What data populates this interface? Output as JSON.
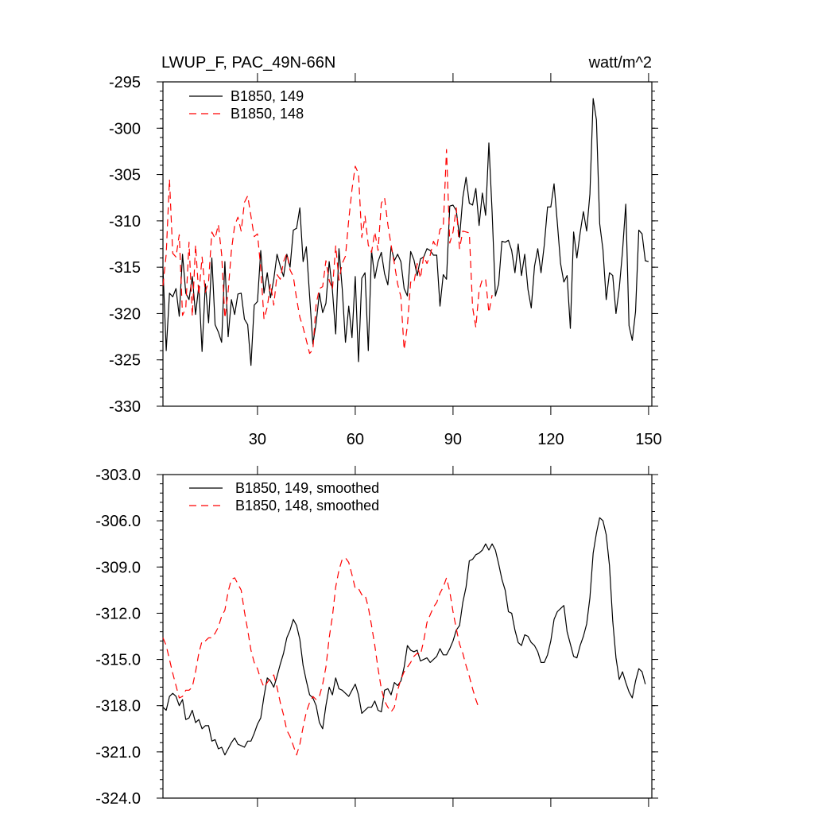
{
  "colors": {
    "series_a": "#000000",
    "series_b": "#ff0000"
  },
  "chart_data": [
    {
      "type": "line",
      "title": "LWUP_F, PAC_49N-66N",
      "units": "watt/m^2",
      "xlim": [
        1,
        151
      ],
      "ylim": [
        -330,
        -295
      ],
      "xticks": [
        30,
        60,
        90,
        120,
        150
      ],
      "yticks": [
        -295,
        -300,
        -305,
        -310,
        -315,
        -320,
        -325,
        -330
      ],
      "ytick_labels": [
        "-295",
        "-300",
        "-305",
        "-310",
        "-315",
        "-320",
        "-325",
        "-330"
      ],
      "legend_position": "top-left",
      "series": [
        {
          "name": "B1850, 149",
          "style": "solid",
          "x_start": 1,
          "values": [
            -315.1,
            -324.0,
            -317.8,
            -318.2,
            -317.3,
            -320.3,
            -313.6,
            -317.8,
            -318.5,
            -316.0,
            -320.1,
            -317.0,
            -324.1,
            -316.8,
            -321.0,
            -314.0,
            -321.2,
            -322.0,
            -323.1,
            -314.4,
            -322.5,
            -318.5,
            -320.1,
            -317.9,
            -317.8,
            -320.6,
            -321.2,
            -325.6,
            -319.1,
            -318.7,
            -313.2,
            -317.8,
            -315.6,
            -318.3,
            -316.3,
            -313.6,
            -314.9,
            -316.0,
            -313.6,
            -315.0,
            -311.0,
            -310.8,
            -308.6,
            -314.4,
            -312.8,
            -318.1,
            -323.3,
            -321.0,
            -317.8,
            -319.9,
            -318.9,
            -314.4,
            -317.5,
            -322.2,
            -313.0,
            -317.3,
            -323.1,
            -319.2,
            -322.6,
            -316.0,
            -325.2,
            -316.2,
            -315.6,
            -324.0,
            -313.2,
            -316.2,
            -314.4,
            -313.4,
            -315.7,
            -316.9,
            -312.8,
            -314.3,
            -313.6,
            -314.4,
            -317.3,
            -318.1,
            -313.3,
            -314.2,
            -315.9,
            -314.1,
            -313.9,
            -313.0,
            -313.2,
            -313.7,
            -313.7,
            -319.2,
            -315.8,
            -316.3,
            -308.4,
            -308.3,
            -308.9,
            -311.8,
            -307.5,
            -305.3,
            -308.1,
            -308.3,
            -306.5,
            -310.5,
            -307.0,
            -309.4,
            -301.6,
            -309.1,
            -318.1,
            -316.8,
            -312.2,
            -312.3,
            -312.1,
            -313.2,
            -315.6,
            -312.5,
            -315.9,
            -313.6,
            -317.4,
            -319.4,
            -314.9,
            -313.0,
            -315.6,
            -312.6,
            -308.5,
            -308.5,
            -306.0,
            -310.2,
            -314.6,
            -316.6,
            -315.9,
            -321.6,
            -311.2,
            -314.0,
            -311.3,
            -309.0,
            -311.1,
            -307.1,
            -296.8,
            -299.1,
            -310.3,
            -313.1,
            -318.5,
            -315.6,
            -315.9,
            -320.0,
            -317.3,
            -313.3,
            -308.2,
            -321.3,
            -322.9,
            -319.8,
            -311.0,
            -311.4,
            -314.3,
            -314.4
          ]
        },
        {
          "name": "B1850, 148",
          "style": "dashed",
          "x_start": 1,
          "values": [
            -317.0,
            -313.6,
            -305.5,
            -313.5,
            -313.9,
            -311.5,
            -320.2,
            -319.4,
            -312.3,
            -320.3,
            -312.6,
            -318.0,
            -313.9,
            -317.7,
            -316.5,
            -311.2,
            -311.9,
            -310.4,
            -313.6,
            -320.5,
            -317.6,
            -313.2,
            -310.5,
            -309.6,
            -311.1,
            -308.0,
            -307.3,
            -309.5,
            -311.7,
            -311.4,
            -315.1,
            -320.6,
            -319.3,
            -316.8,
            -319.1,
            -315.8,
            -316.3,
            -314.4,
            -313.5,
            -315.3,
            -316.0,
            -318.4,
            -320.4,
            -321.5,
            -322.9,
            -324.3,
            -323.9,
            -319.0,
            -317.3,
            -317.1,
            -314.3,
            -316.4,
            -317.4,
            -312.7,
            -316.4,
            -314.6,
            -313.8,
            -309.9,
            -306.6,
            -304.1,
            -304.9,
            -311.8,
            -309.5,
            -312.6,
            -313.4,
            -311.2,
            -313.2,
            -308.1,
            -307.5,
            -310.4,
            -312.6,
            -314.6,
            -316.8,
            -318.2,
            -323.9,
            -321.3,
            -316.6,
            -316.7,
            -314.6,
            -316.2,
            -313.8,
            -314.6,
            -313.7,
            -312.2,
            -312.9,
            -310.9,
            -310.7,
            -302.3,
            -312.4,
            -311.2,
            -308.6,
            -313.0,
            -311.1,
            -311.2,
            -311.3,
            -319.3,
            -321.5,
            -317.5,
            -316.3,
            -316.3,
            -319.9,
            -318.0
          ]
        }
      ]
    },
    {
      "type": "line",
      "title": "",
      "xlim": [
        1,
        151
      ],
      "ylim": [
        -324,
        -303
      ],
      "xticks": [
        30,
        60,
        90,
        120,
        150
      ],
      "yticks": [
        -303,
        -306,
        -309,
        -312,
        -315,
        -318,
        -321,
        -324
      ],
      "ytick_labels": [
        "-303.0",
        "-306.0",
        "-309.0",
        "-312.0",
        "-315.0",
        "-318.0",
        "-321.0",
        "-324.0"
      ],
      "legend_position": "top-left",
      "series": [
        {
          "name": "B1850, 149, smoothed",
          "style": "solid",
          "x_start": 1,
          "values": [
            -318.1,
            -318.3,
            -317.4,
            -317.2,
            -317.4,
            -318.0,
            -317.6,
            -318.9,
            -318.8,
            -318.3,
            -319.1,
            -318.9,
            -319.5,
            -319.3,
            -319.3,
            -320.3,
            -320.2,
            -320.8,
            -320.7,
            -321.2,
            -320.8,
            -320.4,
            -320.1,
            -320.5,
            -320.6,
            -320.7,
            -320.3,
            -320.3,
            -319.8,
            -319.2,
            -318.8,
            -317.4,
            -316.2,
            -316.4,
            -316.8,
            -316.1,
            -315.3,
            -314.6,
            -313.6,
            -313.1,
            -312.4,
            -312.8,
            -313.7,
            -315.4,
            -316.4,
            -317.3,
            -317.5,
            -318.0,
            -319.1,
            -319.5,
            -318.0,
            -316.8,
            -317.3,
            -316.2,
            -316.9,
            -317.0,
            -317.2,
            -317.4,
            -317.0,
            -316.6,
            -317.3,
            -318.5,
            -318.3,
            -318.1,
            -318.1,
            -317.7,
            -318.3,
            -318.4,
            -317.0,
            -316.9,
            -317.3,
            -316.5,
            -316.7,
            -316.4,
            -315.5,
            -314.1,
            -314.4,
            -314.5,
            -314.4,
            -315.1,
            -315.0,
            -314.9,
            -315.2,
            -315.0,
            -314.8,
            -314.3,
            -314.7,
            -314.7,
            -314.3,
            -313.8,
            -313.1,
            -312.8,
            -311.3,
            -310.3,
            -308.6,
            -308.5,
            -308.2,
            -308.1,
            -307.9,
            -307.5,
            -307.9,
            -307.5,
            -307.9,
            -308.8,
            -309.8,
            -310.5,
            -311.9,
            -312.0,
            -313.1,
            -313.9,
            -314.1,
            -313.4,
            -313.5,
            -313.9,
            -314.1,
            -314.5,
            -315.2,
            -315.2,
            -314.7,
            -313.8,
            -312.4,
            -311.9,
            -311.7,
            -311.5,
            -313.2,
            -314.0,
            -314.8,
            -314.9,
            -314.1,
            -313.5,
            -312.7,
            -311.0,
            -308.1,
            -306.8,
            -305.8,
            -306.0,
            -306.9,
            -308.9,
            -312.5,
            -314.9,
            -316.3,
            -315.8,
            -316.5,
            -317.1,
            -317.5,
            -316.4,
            -315.6,
            -315.8,
            -316.6
          ]
        },
        {
          "name": "B1850, 148, smoothed",
          "style": "dashed",
          "x_start": 1,
          "values": [
            -313.6,
            -314.1,
            -315.0,
            -315.9,
            -316.7,
            -317.5,
            -317.4,
            -317.0,
            -317.0,
            -316.8,
            -315.8,
            -314.6,
            -313.8,
            -313.8,
            -313.6,
            -313.6,
            -313.3,
            -312.9,
            -312.2,
            -311.8,
            -310.6,
            -309.8,
            -309.7,
            -310.1,
            -310.5,
            -311.9,
            -313.1,
            -314.4,
            -315.2,
            -315.6,
            -316.3,
            -316.8,
            -316.5,
            -316.2,
            -316.0,
            -316.8,
            -317.8,
            -318.6,
            -319.6,
            -320.0,
            -320.6,
            -321.2,
            -320.5,
            -319.4,
            -318.4,
            -317.8,
            -317.4,
            -317.6,
            -317.4,
            -316.6,
            -315.5,
            -313.6,
            -312.2,
            -310.3,
            -309.2,
            -308.5,
            -308.4,
            -308.7,
            -309.5,
            -310.4,
            -310.4,
            -310.8,
            -310.8,
            -311.6,
            -312.8,
            -314.1,
            -315.6,
            -316.9,
            -317.7,
            -318.1,
            -318.4,
            -318.1,
            -317.0,
            -316.3,
            -315.8,
            -315.5,
            -315.2,
            -314.8,
            -314.6,
            -314.7,
            -313.8,
            -312.6,
            -312.1,
            -311.6,
            -311.3,
            -310.7,
            -310.3,
            -309.7,
            -310.6,
            -311.9,
            -313.0,
            -314.0,
            -314.6,
            -315.4,
            -316.1,
            -316.9,
            -317.6,
            -318.2
          ]
        }
      ]
    }
  ]
}
